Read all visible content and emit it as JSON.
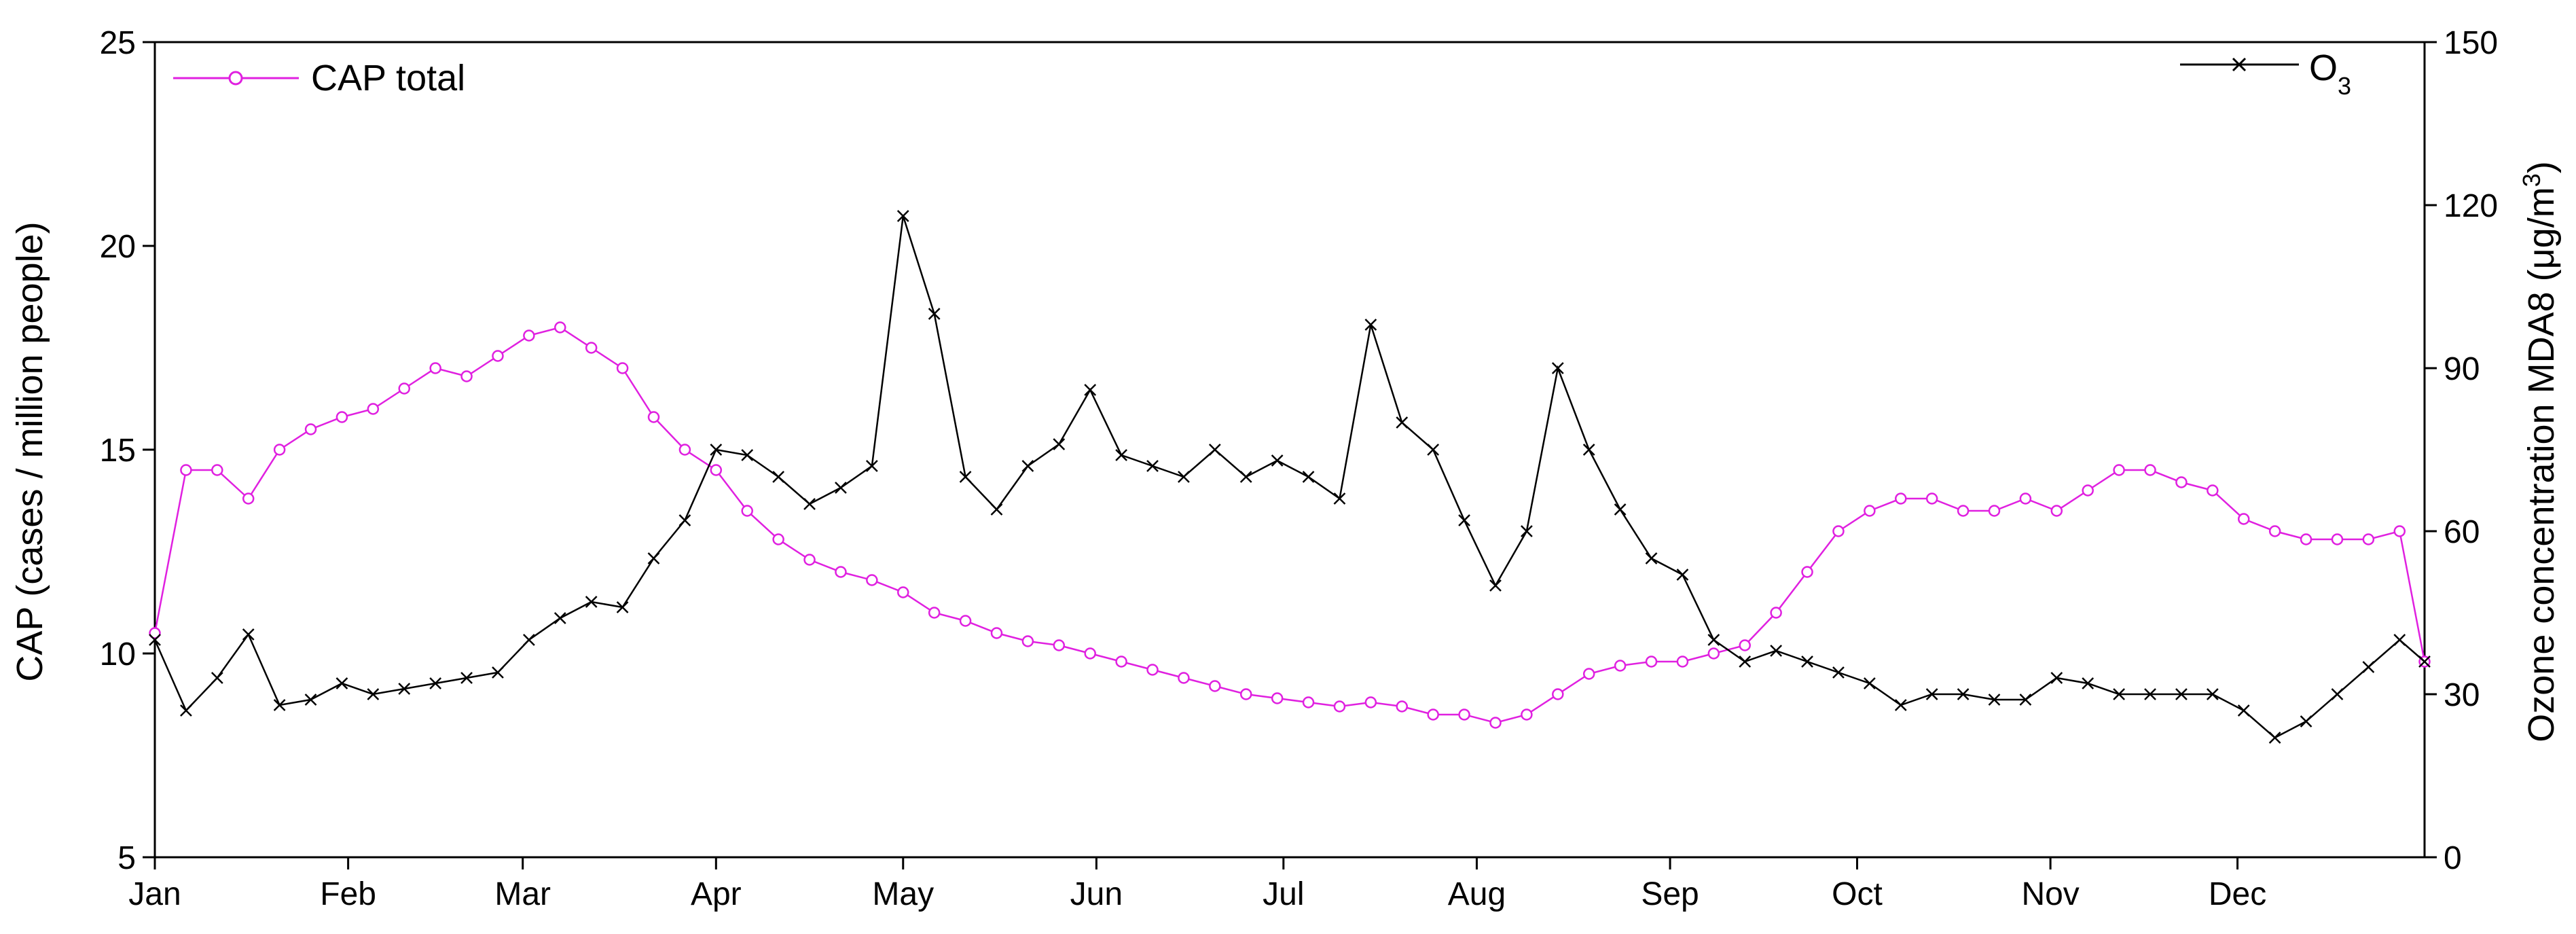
{
  "chart_data": {
    "type": "line",
    "x_axis": {
      "kind": "date",
      "range": [
        "2019-01-01",
        "2019-12-31"
      ],
      "tick_labels": [
        "Jan",
        "Feb",
        "Mar",
        "Apr",
        "May",
        "Jun",
        "Jul",
        "Aug",
        "Sep",
        "Oct",
        "Nov",
        "Dec"
      ],
      "tick_dates": [
        "2019-01-01",
        "2019-02-01",
        "2019-03-01",
        "2019-04-01",
        "2019-05-01",
        "2019-06-01",
        "2019-07-01",
        "2019-08-01",
        "2019-09-01",
        "2019-10-01",
        "2019-11-01",
        "2019-12-01"
      ]
    },
    "y_left": {
      "label": "CAP (cases / million people)",
      "range": [
        5,
        25
      ],
      "ticks": [
        5,
        10,
        15,
        20,
        25
      ]
    },
    "y_right": {
      "label": "Ozone concentration MDA8 (μg/m³)",
      "label_main": "Ozone concentration MDA8 (μg/m",
      "label_sup": "3",
      "label_end": ")",
      "range": [
        0,
        150
      ],
      "ticks": [
        0,
        30,
        60,
        90,
        120,
        150
      ]
    },
    "series": [
      {
        "name": "CAP total",
        "axis": "left",
        "color": "#e020e0",
        "marker": "circle",
        "points": [
          [
            "2019-01-01",
            10.5
          ],
          [
            "2019-01-06",
            14.5
          ],
          [
            "2019-01-11",
            14.5
          ],
          [
            "2019-01-16",
            13.8
          ],
          [
            "2019-01-21",
            15.0
          ],
          [
            "2019-01-26",
            15.5
          ],
          [
            "2019-01-31",
            15.8
          ],
          [
            "2019-02-05",
            16.0
          ],
          [
            "2019-02-10",
            16.5
          ],
          [
            "2019-02-15",
            17.0
          ],
          [
            "2019-02-20",
            16.8
          ],
          [
            "2019-02-25",
            17.3
          ],
          [
            "2019-03-02",
            17.8
          ],
          [
            "2019-03-07",
            18.0
          ],
          [
            "2019-03-12",
            17.5
          ],
          [
            "2019-03-17",
            17.0
          ],
          [
            "2019-03-22",
            15.8
          ],
          [
            "2019-03-27",
            15.0
          ],
          [
            "2019-04-01",
            14.5
          ],
          [
            "2019-04-06",
            13.5
          ],
          [
            "2019-04-11",
            12.8
          ],
          [
            "2019-04-16",
            12.3
          ],
          [
            "2019-04-21",
            12.0
          ],
          [
            "2019-04-26",
            11.8
          ],
          [
            "2019-05-01",
            11.5
          ],
          [
            "2019-05-06",
            11.0
          ],
          [
            "2019-05-11",
            10.8
          ],
          [
            "2019-05-16",
            10.5
          ],
          [
            "2019-05-21",
            10.3
          ],
          [
            "2019-05-26",
            10.2
          ],
          [
            "2019-05-31",
            10.0
          ],
          [
            "2019-06-05",
            9.8
          ],
          [
            "2019-06-10",
            9.6
          ],
          [
            "2019-06-15",
            9.4
          ],
          [
            "2019-06-20",
            9.2
          ],
          [
            "2019-06-25",
            9.0
          ],
          [
            "2019-06-30",
            8.9
          ],
          [
            "2019-07-05",
            8.8
          ],
          [
            "2019-07-10",
            8.7
          ],
          [
            "2019-07-15",
            8.8
          ],
          [
            "2019-07-20",
            8.7
          ],
          [
            "2019-07-25",
            8.5
          ],
          [
            "2019-07-30",
            8.5
          ],
          [
            "2019-08-04",
            8.3
          ],
          [
            "2019-08-09",
            8.5
          ],
          [
            "2019-08-14",
            9.0
          ],
          [
            "2019-08-19",
            9.5
          ],
          [
            "2019-08-24",
            9.7
          ],
          [
            "2019-08-29",
            9.8
          ],
          [
            "2019-09-03",
            9.8
          ],
          [
            "2019-09-08",
            10.0
          ],
          [
            "2019-09-13",
            10.2
          ],
          [
            "2019-09-18",
            11.0
          ],
          [
            "2019-09-23",
            12.0
          ],
          [
            "2019-09-28",
            13.0
          ],
          [
            "2019-10-03",
            13.5
          ],
          [
            "2019-10-08",
            13.8
          ],
          [
            "2019-10-13",
            13.8
          ],
          [
            "2019-10-18",
            13.5
          ],
          [
            "2019-10-23",
            13.5
          ],
          [
            "2019-10-28",
            13.8
          ],
          [
            "2019-11-02",
            13.5
          ],
          [
            "2019-11-07",
            14.0
          ],
          [
            "2019-11-12",
            14.5
          ],
          [
            "2019-11-17",
            14.5
          ],
          [
            "2019-11-22",
            14.2
          ],
          [
            "2019-11-27",
            14.0
          ],
          [
            "2019-12-02",
            13.3
          ],
          [
            "2019-12-07",
            13.0
          ],
          [
            "2019-12-12",
            12.8
          ],
          [
            "2019-12-17",
            12.8
          ],
          [
            "2019-12-22",
            12.8
          ],
          [
            "2019-12-27",
            13.0
          ],
          [
            "2019-12-31",
            9.8
          ]
        ]
      },
      {
        "name": "O3",
        "legend_main": "O",
        "legend_sub": "3",
        "axis": "right",
        "color": "#000000",
        "marker": "x",
        "points": [
          [
            "2019-01-01",
            40
          ],
          [
            "2019-01-06",
            27
          ],
          [
            "2019-01-11",
            33
          ],
          [
            "2019-01-16",
            41
          ],
          [
            "2019-01-21",
            28
          ],
          [
            "2019-01-26",
            29
          ],
          [
            "2019-01-31",
            32
          ],
          [
            "2019-02-05",
            30
          ],
          [
            "2019-02-10",
            31
          ],
          [
            "2019-02-15",
            32
          ],
          [
            "2019-02-20",
            33
          ],
          [
            "2019-02-25",
            34
          ],
          [
            "2019-03-02",
            40
          ],
          [
            "2019-03-07",
            44
          ],
          [
            "2019-03-12",
            47
          ],
          [
            "2019-03-17",
            46
          ],
          [
            "2019-03-22",
            55
          ],
          [
            "2019-03-27",
            62
          ],
          [
            "2019-04-01",
            75
          ],
          [
            "2019-04-06",
            74
          ],
          [
            "2019-04-11",
            70
          ],
          [
            "2019-04-16",
            65
          ],
          [
            "2019-04-21",
            68
          ],
          [
            "2019-04-26",
            72
          ],
          [
            "2019-05-01",
            118
          ],
          [
            "2019-05-06",
            100
          ],
          [
            "2019-05-11",
            70
          ],
          [
            "2019-05-16",
            64
          ],
          [
            "2019-05-21",
            72
          ],
          [
            "2019-05-26",
            76
          ],
          [
            "2019-05-31",
            86
          ],
          [
            "2019-06-05",
            74
          ],
          [
            "2019-06-10",
            72
          ],
          [
            "2019-06-15",
            70
          ],
          [
            "2019-06-20",
            75
          ],
          [
            "2019-06-25",
            70
          ],
          [
            "2019-06-30",
            73
          ],
          [
            "2019-07-05",
            70
          ],
          [
            "2019-07-10",
            66
          ],
          [
            "2019-07-15",
            98
          ],
          [
            "2019-07-20",
            80
          ],
          [
            "2019-07-25",
            75
          ],
          [
            "2019-07-30",
            62
          ],
          [
            "2019-08-04",
            50
          ],
          [
            "2019-08-09",
            60
          ],
          [
            "2019-08-14",
            90
          ],
          [
            "2019-08-19",
            75
          ],
          [
            "2019-08-24",
            64
          ],
          [
            "2019-08-29",
            55
          ],
          [
            "2019-09-03",
            52
          ],
          [
            "2019-09-08",
            40
          ],
          [
            "2019-09-13",
            36
          ],
          [
            "2019-09-18",
            38
          ],
          [
            "2019-09-23",
            36
          ],
          [
            "2019-09-28",
            34
          ],
          [
            "2019-10-03",
            32
          ],
          [
            "2019-10-08",
            28
          ],
          [
            "2019-10-13",
            30
          ],
          [
            "2019-10-18",
            30
          ],
          [
            "2019-10-23",
            29
          ],
          [
            "2019-10-28",
            29
          ],
          [
            "2019-11-02",
            33
          ],
          [
            "2019-11-07",
            32
          ],
          [
            "2019-11-12",
            30
          ],
          [
            "2019-11-17",
            30
          ],
          [
            "2019-11-22",
            30
          ],
          [
            "2019-11-27",
            30
          ],
          [
            "2019-12-02",
            27
          ],
          [
            "2019-12-07",
            22
          ],
          [
            "2019-12-12",
            25
          ],
          [
            "2019-12-17",
            30
          ],
          [
            "2019-12-22",
            35
          ],
          [
            "2019-12-27",
            40
          ],
          [
            "2019-12-31",
            36
          ]
        ]
      }
    ],
    "legend": [
      {
        "label": "CAP total",
        "placement": "top-left"
      },
      {
        "label": "O3",
        "placement": "top-right"
      }
    ],
    "grid": false
  }
}
